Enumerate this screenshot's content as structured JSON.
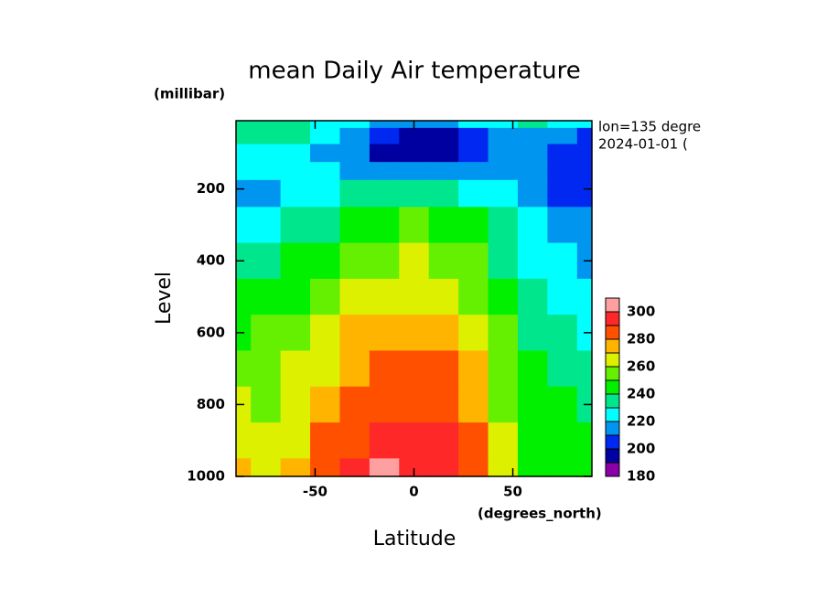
{
  "chart_data": {
    "type": "contour",
    "title": "mean Daily Air temperature",
    "x_label": "Latitude",
    "x_units": "(degrees_north)",
    "y_label": "Level",
    "y_units": "(millibar)",
    "annotations": [
      "lon=135 degre",
      "2024-01-01 ("
    ],
    "xlim": [
      -90,
      90
    ],
    "xticks": [
      -50,
      0,
      50
    ],
    "ylim": [
      1000,
      10
    ],
    "yticks": [
      200,
      400,
      600,
      800,
      1000
    ],
    "x": [
      -90,
      -75,
      -60,
      -45,
      -30,
      -15,
      0,
      15,
      30,
      45,
      60,
      75,
      90
    ],
    "y": [
      10,
      50,
      100,
      150,
      200,
      300,
      400,
      500,
      600,
      700,
      800,
      900,
      1000
    ],
    "z": [
      [
        235,
        234,
        232,
        228,
        220,
        215,
        215,
        215,
        220,
        225,
        230,
        225,
        220
      ],
      [
        232,
        230,
        230,
        220,
        212,
        200,
        197,
        198,
        208,
        216,
        218,
        214,
        205
      ],
      [
        228,
        224,
        224,
        218,
        210,
        196,
        195,
        196,
        205,
        215,
        214,
        208,
        200
      ],
      [
        226,
        222,
        222,
        220,
        216,
        212,
        212,
        212,
        215,
        218,
        215,
        205,
        205
      ],
      [
        215,
        218,
        225,
        228,
        232,
        233,
        234,
        233,
        228,
        220,
        215,
        208,
        205
      ],
      [
        222,
        225,
        232,
        238,
        245,
        248,
        250,
        248,
        242,
        230,
        220,
        215,
        212
      ],
      [
        232,
        235,
        240,
        248,
        253,
        258,
        260,
        258,
        250,
        238,
        226,
        220,
        218
      ],
      [
        240,
        244,
        246,
        255,
        262,
        266,
        268,
        266,
        258,
        245,
        232,
        226,
        222
      ],
      [
        248,
        250,
        252,
        262,
        270,
        275,
        276,
        275,
        265,
        250,
        238,
        232,
        228
      ],
      [
        255,
        255,
        260,
        268,
        275,
        282,
        282,
        281,
        270,
        255,
        242,
        238,
        233
      ],
      [
        262,
        258,
        265,
        275,
        282,
        288,
        288,
        286,
        275,
        258,
        245,
        240,
        238
      ],
      [
        268,
        262,
        268,
        282,
        288,
        293,
        292,
        290,
        280,
        262,
        248,
        242,
        242
      ],
      [
        272,
        265,
        270,
        283,
        290,
        302,
        298,
        293,
        283,
        262,
        245,
        242,
        245
      ]
    ],
    "levels": [
      180,
      190,
      200,
      210,
      220,
      230,
      240,
      250,
      260,
      270,
      280,
      290,
      300,
      310
    ],
    "colors": [
      "#8a00a8",
      "#0000a0",
      "#0028f0",
      "#0096f0",
      "#00ffff",
      "#00e68c",
      "#00f000",
      "#64f000",
      "#dcf000",
      "#ffb400",
      "#ff5000",
      "#ff2828",
      "#ffa0a0"
    ],
    "colorbar_ticks": [
      180,
      200,
      220,
      240,
      260,
      280,
      300
    ]
  }
}
